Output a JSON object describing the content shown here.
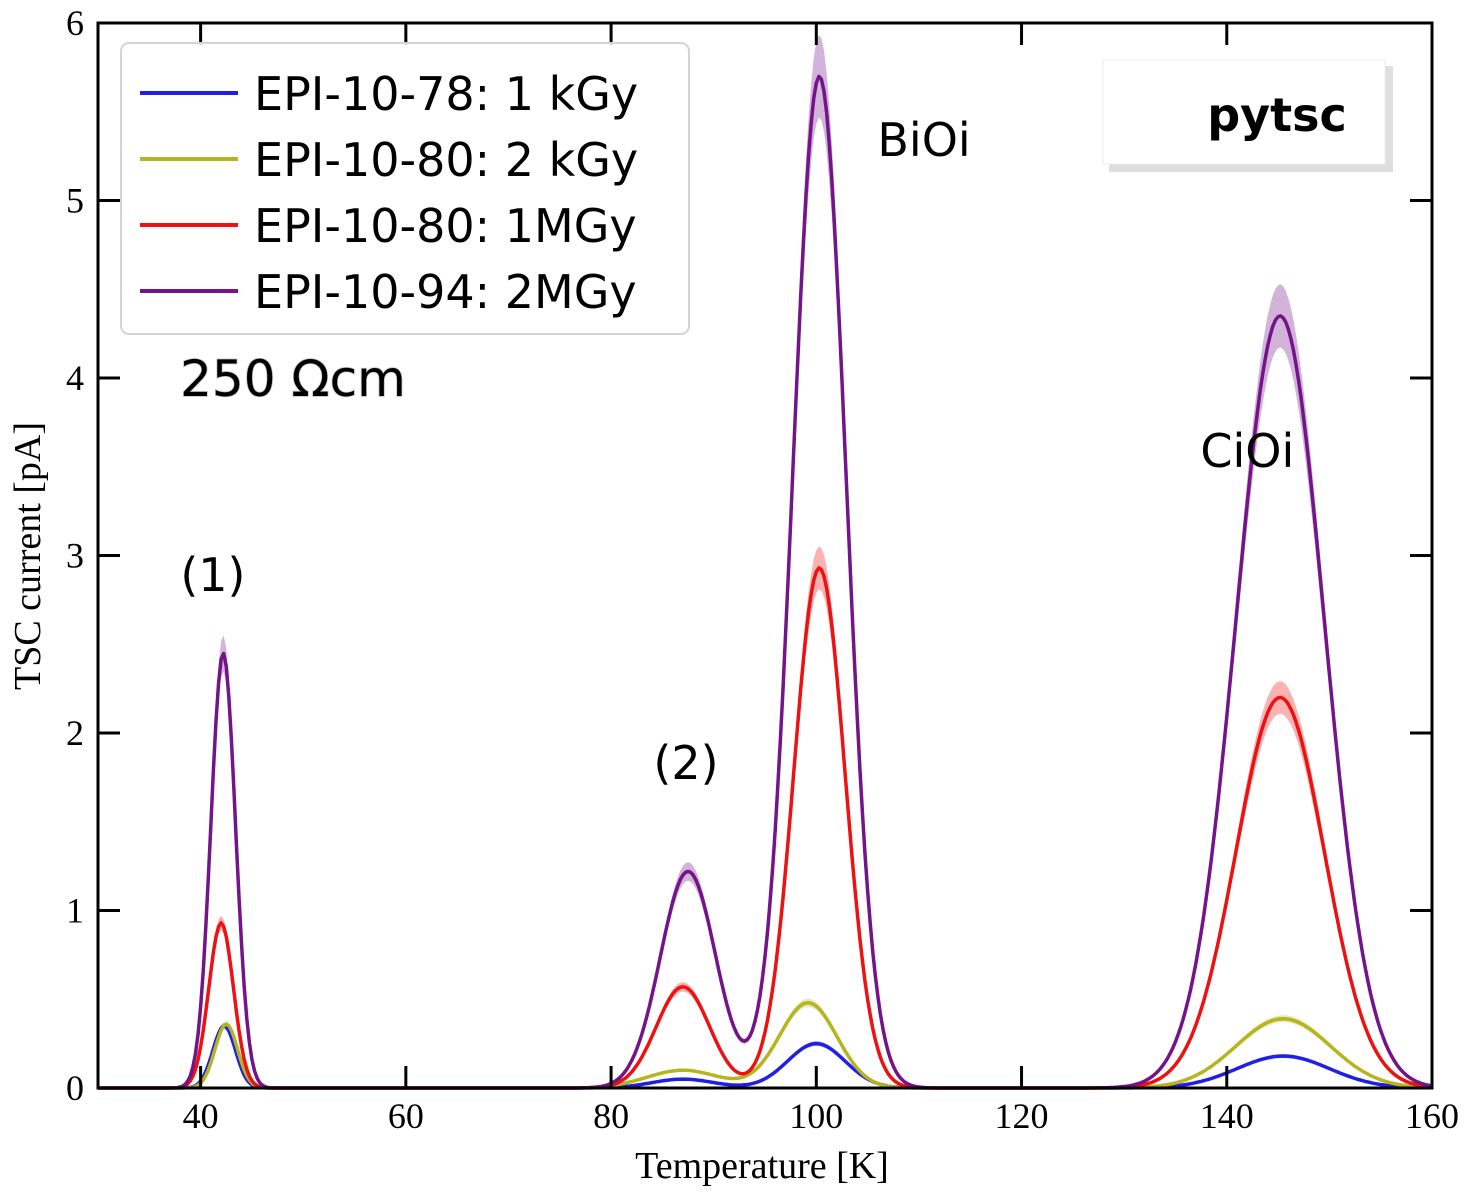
{
  "chart_data": {
    "type": "line",
    "title": "",
    "xlabel": "Temperature [K]",
    "ylabel": "TSC current [pA]",
    "xlim": [
      30,
      160
    ],
    "ylim": [
      0,
      6
    ],
    "x_ticks": [
      40,
      60,
      80,
      100,
      120,
      140,
      160
    ],
    "y_ticks": [
      0,
      1,
      2,
      3,
      4,
      5,
      6
    ],
    "x_tick_labels": [
      "40",
      "60",
      "80",
      "100",
      "120",
      "140",
      "160"
    ],
    "y_tick_labels": [
      "0",
      "1",
      "2",
      "3",
      "4",
      "5",
      "6"
    ],
    "legend_position": "top-left",
    "series": [
      {
        "name": "EPI-10-78: 1 kGy",
        "color": "#1f1fe6",
        "peaks": [
          {
            "center": 42.3,
            "height": 0.35,
            "sigma": 1.1
          },
          {
            "center": 87.0,
            "height": 0.05,
            "sigma": 3.0
          },
          {
            "center": 100.0,
            "height": 0.25,
            "sigma": 2.8
          },
          {
            "center": 145.5,
            "height": 0.18,
            "sigma": 4.5
          }
        ]
      },
      {
        "name": "EPI-10-80: 2 kGy",
        "color": "#b5b51e",
        "peaks": [
          {
            "center": 42.5,
            "height": 0.36,
            "sigma": 1.1
          },
          {
            "center": 87.0,
            "height": 0.1,
            "sigma": 3.5
          },
          {
            "center": 99.2,
            "height": 0.48,
            "sigma": 2.8
          },
          {
            "center": 145.5,
            "height": 0.39,
            "sigma": 4.6
          }
        ]
      },
      {
        "name": "EPI-10-80: 1MGy",
        "color": "#ee1111",
        "peaks": [
          {
            "center": 42.0,
            "height": 0.93,
            "sigma": 1.2
          },
          {
            "center": 87.0,
            "height": 0.57,
            "sigma": 2.6
          },
          {
            "center": 100.3,
            "height": 2.93,
            "sigma": 2.5
          },
          {
            "center": 145.2,
            "height": 2.2,
            "sigma": 4.3
          }
        ]
      },
      {
        "name": "EPI-10-94: 2MGy",
        "color": "#731488",
        "peaks": [
          {
            "center": 42.2,
            "height": 2.45,
            "sigma": 1.2
          },
          {
            "center": 87.5,
            "height": 1.22,
            "sigma": 2.7
          },
          {
            "center": 100.3,
            "height": 5.7,
            "sigma": 2.6
          },
          {
            "center": 145.2,
            "height": 4.35,
            "sigma": 4.3
          }
        ]
      }
    ],
    "annotations": [
      {
        "text": "(1)",
        "x": 41.2,
        "y": 2.8
      },
      {
        "text": "(2)",
        "x": 87.3,
        "y": 1.74
      },
      {
        "text": "BiOi",
        "x": 110.5,
        "y": 5.25
      },
      {
        "text": "CiOi",
        "x": 142.0,
        "y": 3.5
      },
      {
        "text": "250 Ωcm",
        "x": 38.0,
        "y": 3.9
      }
    ],
    "badge_text": "pytsc"
  }
}
